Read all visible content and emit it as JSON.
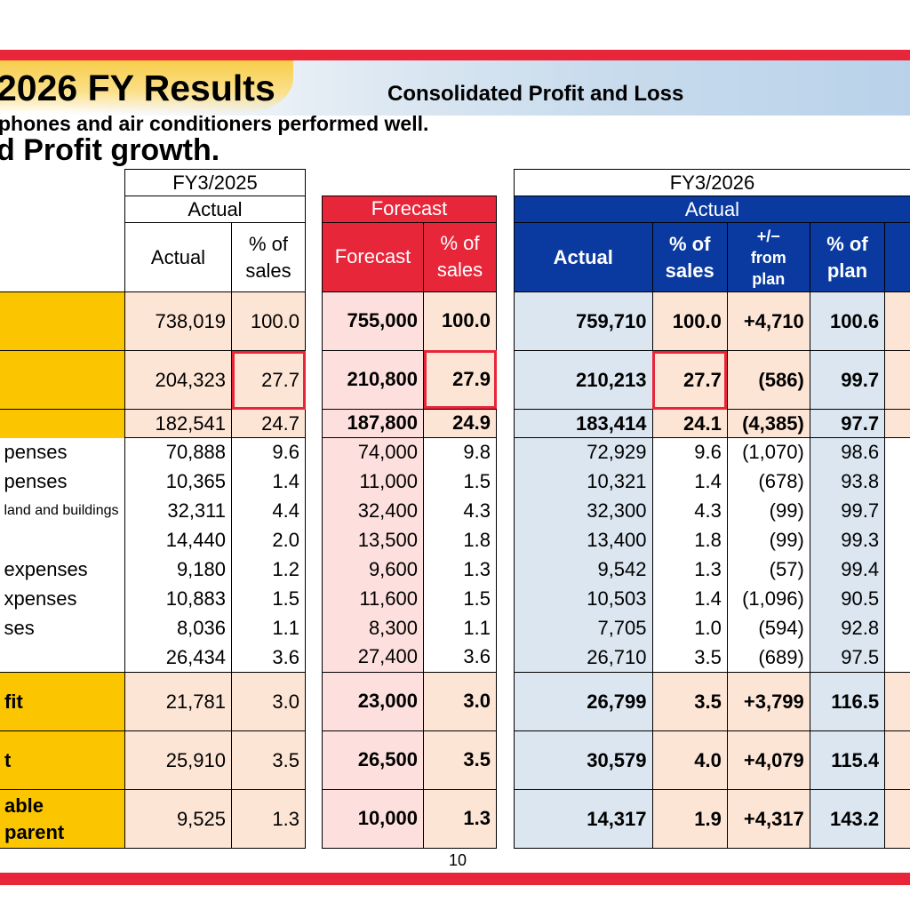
{
  "header": {
    "title": "2026 FY Results",
    "subtitle": "Consolidated Profit and Loss",
    "line1": "phones and air conditioners performed well.",
    "line2": "d Profit growth."
  },
  "left": {
    "period": "FY3/2025",
    "group": "Actual",
    "col_actual": "Actual",
    "col_pct": [
      "% of",
      "sales"
    ],
    "rows": [
      {
        "label": "",
        "actual": "738,019",
        "pct": "100.0"
      },
      {
        "label": "",
        "actual": "204,323",
        "pct": "27.7"
      },
      {
        "label": "",
        "actual": "182,541",
        "pct": "24.7"
      },
      {
        "label": "penses",
        "actual": "70,888",
        "pct": "9.6"
      },
      {
        "label": "penses",
        "actual": "10,365",
        "pct": "1.4"
      },
      {
        "label": "land and buildings",
        "actual": "32,311",
        "pct": "4.4"
      },
      {
        "label": "",
        "actual": "14,440",
        "pct": "2.0"
      },
      {
        "label": "expenses",
        "actual": "9,180",
        "pct": "1.2"
      },
      {
        "label": "xpenses",
        "actual": "10,883",
        "pct": "1.5"
      },
      {
        "label": "ses",
        "actual": "8,036",
        "pct": "1.1"
      },
      {
        "label": "",
        "actual": "26,434",
        "pct": "3.6"
      },
      {
        "label": "fit",
        "actual": "21,781",
        "pct": "3.0"
      },
      {
        "label": "t",
        "actual": "25,910",
        "pct": "3.5"
      },
      {
        "label": "able\nparent",
        "actual": "9,525",
        "pct": "1.3"
      }
    ]
  },
  "forecast": {
    "group": "Forecast",
    "col_forecast": "Forecast",
    "col_pct": [
      "% of",
      "sales"
    ],
    "rows": [
      {
        "forecast": "755,000",
        "pct": "100.0"
      },
      {
        "forecast": "210,800",
        "pct": "27.9"
      },
      {
        "forecast": "187,800",
        "pct": "24.9"
      },
      {
        "forecast": "74,000",
        "pct": "9.8"
      },
      {
        "forecast": "11,000",
        "pct": "1.5"
      },
      {
        "forecast": "32,400",
        "pct": "4.3"
      },
      {
        "forecast": "13,500",
        "pct": "1.8"
      },
      {
        "forecast": "9,600",
        "pct": "1.3"
      },
      {
        "forecast": "11,600",
        "pct": "1.5"
      },
      {
        "forecast": "8,300",
        "pct": "1.1"
      },
      {
        "forecast": "27,400",
        "pct": "3.6"
      },
      {
        "forecast": "23,000",
        "pct": "3.0"
      },
      {
        "forecast": "26,500",
        "pct": "3.5"
      },
      {
        "forecast": "10,000",
        "pct": "1.3"
      }
    ]
  },
  "actual": {
    "period": "FY3/2026",
    "group": "Actual",
    "col_actual": "Actual",
    "col_pct": [
      "% of",
      "sales"
    ],
    "col_diff": [
      "+/−",
      "from",
      "plan"
    ],
    "col_plan": [
      "% of",
      "plan"
    ],
    "rows": [
      {
        "actual": "759,710",
        "pct": "100.0",
        "diff": "+4,710",
        "plan": "100.6"
      },
      {
        "actual": "210,213",
        "pct": "27.7",
        "diff": "(586)",
        "plan": "99.7"
      },
      {
        "actual": "183,414",
        "pct": "24.1",
        "diff": "(4,385)",
        "plan": "97.7"
      },
      {
        "actual": "72,929",
        "pct": "9.6",
        "diff": "(1,070)",
        "plan": "98.6"
      },
      {
        "actual": "10,321",
        "pct": "1.4",
        "diff": "(678)",
        "plan": "93.8"
      },
      {
        "actual": "32,300",
        "pct": "4.3",
        "diff": "(99)",
        "plan": "99.7"
      },
      {
        "actual": "13,400",
        "pct": "1.8",
        "diff": "(99)",
        "plan": "99.3"
      },
      {
        "actual": "9,542",
        "pct": "1.3",
        "diff": "(57)",
        "plan": "99.4"
      },
      {
        "actual": "10,503",
        "pct": "1.4",
        "diff": "(1,096)",
        "plan": "90.5"
      },
      {
        "actual": "7,705",
        "pct": "1.0",
        "diff": "(594)",
        "plan": "92.8"
      },
      {
        "actual": "26,710",
        "pct": "3.5",
        "diff": "(689)",
        "plan": "97.5"
      },
      {
        "actual": "26,799",
        "pct": "3.5",
        "diff": "+3,799",
        "plan": "116.5"
      },
      {
        "actual": "30,579",
        "pct": "4.0",
        "diff": "+4,079",
        "plan": "115.4"
      },
      {
        "actual": "14,317",
        "pct": "1.9",
        "diff": "+4,317",
        "plan": "143.2"
      }
    ]
  },
  "page_number": "10",
  "colors": {
    "accent_red": "#e8263a",
    "header_blue": "#0a3aa0",
    "gold": "#fbc600"
  }
}
